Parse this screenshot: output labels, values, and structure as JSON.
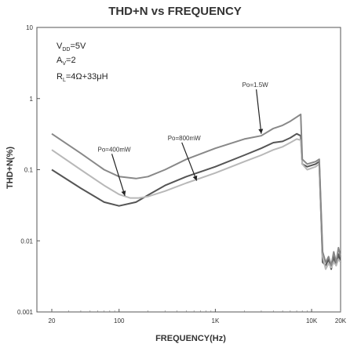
{
  "chart_data": {
    "type": "line",
    "title": "THD+N vs FREQUENCY",
    "xlabel": "FREQUENCY(Hz)",
    "ylabel": "THD+N(%)",
    "x_scale": "log",
    "y_scale": "log",
    "xlim": [
      14,
      20000
    ],
    "ylim": [
      0.001,
      10
    ],
    "x_ticks": [
      {
        "value": 20,
        "label": "20"
      },
      {
        "value": 100,
        "label": "100"
      },
      {
        "value": 1000,
        "label": "1K"
      },
      {
        "value": 10000,
        "label": "10K"
      },
      {
        "value": 20000,
        "label": "20K"
      }
    ],
    "y_ticks": [
      {
        "value": 10,
        "label": "10"
      },
      {
        "value": 1,
        "label": "1"
      },
      {
        "value": 0.1,
        "label": "0.1"
      },
      {
        "value": 0.01,
        "label": "0.01"
      },
      {
        "value": 0.001,
        "label": "0.001"
      }
    ],
    "conditions": {
      "vdd": {
        "main": "V",
        "sub": "DD",
        "rest": "=5V"
      },
      "av": {
        "main": "A",
        "sub": "V",
        "rest": "=2"
      },
      "rl": {
        "main": "R",
        "sub": "L",
        "rest": "=4Ω+33μH"
      }
    },
    "grid": false,
    "series": [
      {
        "name": "Po=400mW",
        "color": "#555555",
        "points": [
          [
            20,
            0.1
          ],
          [
            40,
            0.055
          ],
          [
            70,
            0.035
          ],
          [
            100,
            0.031
          ],
          [
            150,
            0.035
          ],
          [
            200,
            0.044
          ],
          [
            300,
            0.06
          ],
          [
            500,
            0.08
          ],
          [
            1000,
            0.11
          ],
          [
            2000,
            0.16
          ],
          [
            3000,
            0.2
          ],
          [
            4000,
            0.24
          ],
          [
            5000,
            0.25
          ],
          [
            6000,
            0.28
          ],
          [
            7000,
            0.32
          ],
          [
            7700,
            0.3
          ],
          [
            8000,
            0.12
          ],
          [
            9000,
            0.11
          ],
          [
            11000,
            0.12
          ],
          [
            12000,
            0.13
          ],
          [
            13000,
            0.005
          ],
          [
            14000,
            0.0045
          ],
          [
            15000,
            0.0055
          ],
          [
            16000,
            0.004
          ],
          [
            17000,
            0.006
          ],
          [
            18000,
            0.0045
          ],
          [
            19000,
            0.0065
          ],
          [
            20000,
            0.005
          ]
        ]
      },
      {
        "name": "Po=800mW",
        "color": "#b8b8b8",
        "points": [
          [
            20,
            0.19
          ],
          [
            40,
            0.1
          ],
          [
            70,
            0.06
          ],
          [
            100,
            0.045
          ],
          [
            130,
            0.04
          ],
          [
            160,
            0.04
          ],
          [
            200,
            0.042
          ],
          [
            300,
            0.05
          ],
          [
            500,
            0.065
          ],
          [
            1000,
            0.09
          ],
          [
            2000,
            0.13
          ],
          [
            3000,
            0.16
          ],
          [
            4000,
            0.19
          ],
          [
            5000,
            0.21
          ],
          [
            6000,
            0.24
          ],
          [
            7000,
            0.27
          ],
          [
            7700,
            0.26
          ],
          [
            8000,
            0.12
          ],
          [
            9000,
            0.1
          ],
          [
            11000,
            0.11
          ],
          [
            12000,
            0.12
          ],
          [
            13000,
            0.006
          ],
          [
            14000,
            0.004
          ],
          [
            15000,
            0.0048
          ],
          [
            16000,
            0.0042
          ],
          [
            17000,
            0.005
          ],
          [
            18000,
            0.0045
          ],
          [
            19000,
            0.0055
          ],
          [
            20000,
            0.005
          ]
        ]
      },
      {
        "name": "Po=1.5W",
        "color": "#888888",
        "points": [
          [
            20,
            0.32
          ],
          [
            40,
            0.17
          ],
          [
            70,
            0.1
          ],
          [
            100,
            0.08
          ],
          [
            150,
            0.075
          ],
          [
            200,
            0.08
          ],
          [
            300,
            0.1
          ],
          [
            500,
            0.14
          ],
          [
            1000,
            0.2
          ],
          [
            2000,
            0.27
          ],
          [
            3000,
            0.3
          ],
          [
            4000,
            0.38
          ],
          [
            5000,
            0.42
          ],
          [
            6000,
            0.48
          ],
          [
            7000,
            0.55
          ],
          [
            7700,
            0.6
          ],
          [
            8000,
            0.14
          ],
          [
            9000,
            0.12
          ],
          [
            11000,
            0.13
          ],
          [
            12000,
            0.14
          ],
          [
            13000,
            0.007
          ],
          [
            14000,
            0.005
          ],
          [
            15000,
            0.006
          ],
          [
            16000,
            0.0045
          ],
          [
            17000,
            0.007
          ],
          [
            18000,
            0.005
          ],
          [
            19000,
            0.008
          ],
          [
            20000,
            0.006
          ]
        ]
      }
    ],
    "annotations": [
      {
        "text": "Po=1.5W",
        "label_at": [
          1900,
          1.45
        ],
        "arrow_to": [
          3000,
          0.32
        ]
      },
      {
        "text": "Po=800mW",
        "label_at": [
          320,
          0.26
        ],
        "arrow_to": [
          640,
          0.07
        ]
      },
      {
        "text": "Po=400mW",
        "label_at": [
          60,
          0.18
        ],
        "arrow_to": [
          115,
          0.043
        ]
      }
    ]
  }
}
